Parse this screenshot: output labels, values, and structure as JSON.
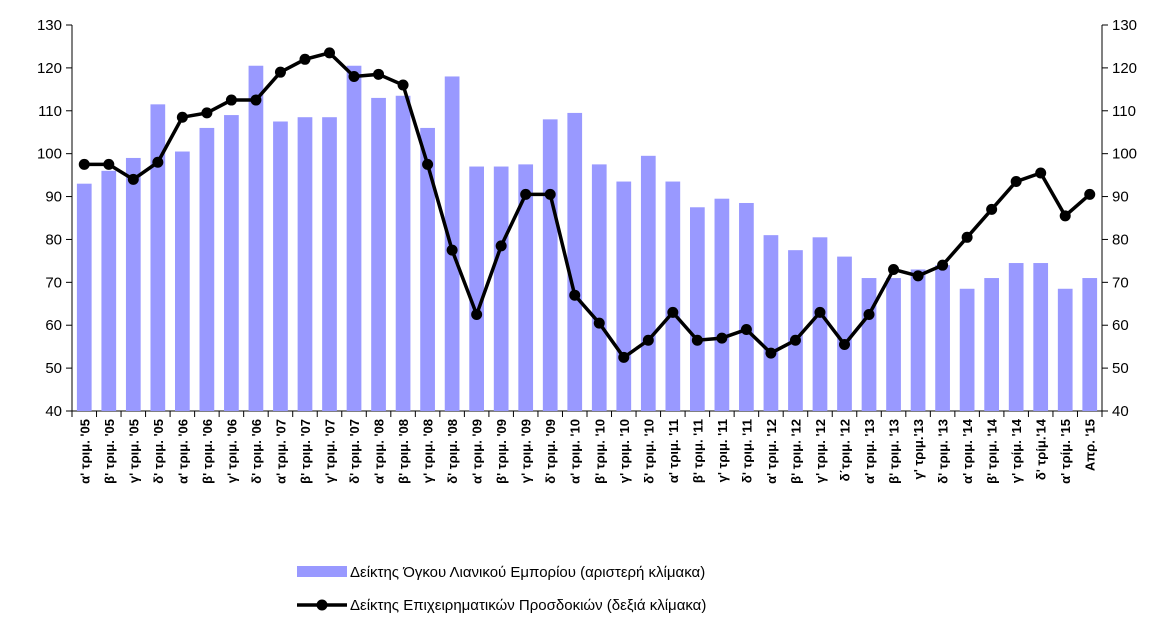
{
  "chart_data": {
    "type": "bar_line",
    "categories": [
      "α' τριμ. '05",
      "β' τριμ. '05",
      "γ' τριμ. '05",
      "δ' τριμ. '05",
      "α' τριμ. '06",
      "β' τριμ. '06",
      "γ' τριμ. '06",
      "δ' τριμ. '06",
      "α' τριμ. '07",
      "β' τριμ. '07",
      "γ' τριμ. '07",
      "δ' τριμ. '07",
      "α' τριμ. '08",
      "β' τριμ. '08",
      "γ' τριμ. '08",
      "δ' τριμ. '08",
      "α' τριμ. '09",
      "β' τριμ. '09",
      "γ' τριμ. '09",
      "δ' τριμ. '09",
      "α' τριμ. '10",
      "β' τριμ. '10",
      "γ' τριμ. '10",
      "δ' τριμ. '10",
      "α' τριμ. '11",
      "β' τριμ. '11",
      "γ' τριμ. '11",
      "δ' τριμ. '11",
      "α' τριμ. '12",
      "β' τριμ. '12",
      "γ' τριμ. '12",
      "δ΄τριμ. '12",
      "α' τριμ. '13",
      "β' τριμ. '13",
      "γ' τριμ.'13",
      "δ' τριμ. '13",
      "α' τριμ. '14",
      "β' τριμ. '14",
      "γ' τρίμ. '14",
      "δ' τρίμ.'14",
      "α' τρίμ. '15",
      "Απρ. '15"
    ],
    "series": [
      {
        "name": "Δείκτης Όγκου Λιανικού Εμπορίου (αριστερή κλίμακα)",
        "color": "#9999ff",
        "kind": "bar",
        "axis": "y",
        "values": [
          93,
          96,
          99,
          111.5,
          100.5,
          106,
          109,
          120.5,
          107.5,
          108.5,
          108.5,
          120.5,
          113,
          113.5,
          106,
          118,
          97,
          97,
          97.5,
          108,
          109.5,
          97.5,
          93.5,
          99.5,
          93.5,
          87.5,
          89.5,
          88.5,
          81,
          77.5,
          80.5,
          76,
          71,
          71,
          73,
          74,
          68.5,
          71,
          74.5,
          74.5,
          68.5,
          71
        ]
      },
      {
        "name": "Δείκτης Επιχειρηματικών Προσδοκιών (δεξιά κλίμακα)",
        "color": "#000000",
        "kind": "line",
        "axis": "y2",
        "values": [
          97.5,
          97.5,
          94,
          98,
          108.5,
          109.5,
          112.5,
          112.5,
          119,
          122,
          123.5,
          118,
          118.5,
          116,
          97.5,
          77.5,
          62.5,
          78.5,
          90.5,
          90.5,
          67,
          60.5,
          52.5,
          56.5,
          63,
          56.5,
          57,
          59,
          53.5,
          56.5,
          63,
          55.5,
          62.5,
          73,
          71.5,
          74,
          80.5,
          87,
          93.5,
          95.5,
          85.5,
          90.5
        ]
      }
    ],
    "ylim": [
      40,
      130
    ],
    "yticks": [
      40,
      50,
      60,
      70,
      80,
      90,
      100,
      110,
      120,
      130
    ],
    "y2lim": [
      40,
      130
    ],
    "y2ticks": [
      40,
      50,
      60,
      70,
      80,
      90,
      100,
      110,
      120,
      130
    ],
    "legend": "bottom"
  }
}
